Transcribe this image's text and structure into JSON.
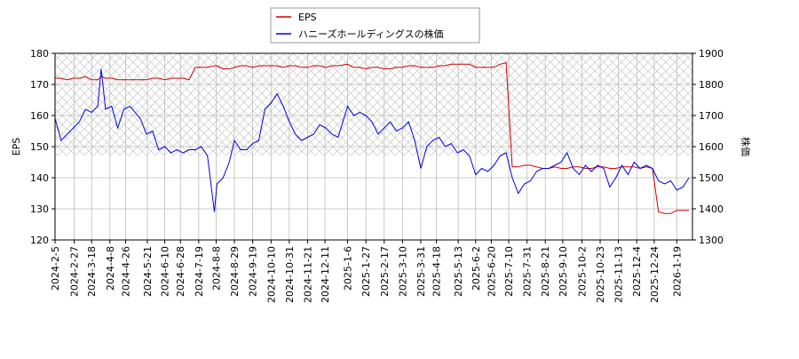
{
  "chart_data": {
    "type": "line",
    "x": [
      "2024-2-5",
      "2024-2-12",
      "2024-2-19",
      "2024-2-26",
      "2024-3-4",
      "2024-3-11",
      "2024-3-18",
      "2024-3-25",
      "2024-3-29",
      "2024-4-3",
      "2024-4-10",
      "2024-4-17",
      "2024-4-24",
      "2024-5-1",
      "2024-5-13",
      "2024-5-20",
      "2024-5-27",
      "2024-6-3",
      "2024-6-10",
      "2024-6-17",
      "2024-6-24",
      "2024-7-1",
      "2024-7-8",
      "2024-7-15",
      "2024-7-22",
      "2024-7-29",
      "2024-8-6",
      "2024-8-9",
      "2024-8-16",
      "2024-8-23",
      "2024-8-29",
      "2024-9-5",
      "2024-9-12",
      "2024-9-19",
      "2024-9-26",
      "2024-10-3",
      "2024-10-10",
      "2024-10-17",
      "2024-10-24",
      "2024-10-31",
      "2024-11-7",
      "2024-11-14",
      "2024-11-21",
      "2024-11-28",
      "2024-12-5",
      "2024-12-12",
      "2024-12-19",
      "2024-12-26",
      "2025-1-6",
      "2025-1-13",
      "2025-1-20",
      "2025-1-27",
      "2025-2-3",
      "2025-2-10",
      "2025-2-17",
      "2025-2-24",
      "2025-3-3",
      "2025-3-10",
      "2025-3-17",
      "2025-3-24",
      "2025-3-31",
      "2025-4-7",
      "2025-4-14",
      "2025-4-21",
      "2025-4-28",
      "2025-5-5",
      "2025-5-12",
      "2025-5-19",
      "2025-5-26",
      "2025-6-2",
      "2025-6-9",
      "2025-6-16",
      "2025-6-23",
      "2025-6-30",
      "2025-7-7",
      "2025-7-14",
      "2025-7-21",
      "2025-7-28",
      "2025-8-4",
      "2025-8-11",
      "2025-8-18",
      "2025-8-25",
      "2025-9-1",
      "2025-9-8",
      "2025-9-15",
      "2025-9-22",
      "2025-9-29",
      "2025-10-6",
      "2025-10-13",
      "2025-10-20",
      "2025-10-27",
      "2025-11-3",
      "2025-11-10",
      "2025-11-17",
      "2025-11-24",
      "2025-12-1",
      "2025-12-8",
      "2025-12-15",
      "2025-12-22",
      "2025-12-29",
      "2026-1-5",
      "2026-1-12",
      "2026-1-19",
      "2026-1-26",
      "2026-2-2"
    ],
    "series": [
      {
        "name": "EPS",
        "color": "#cc0000",
        "values": [
          172,
          172,
          171.5,
          172,
          172,
          172.5,
          171.5,
          171.5,
          172.5,
          172,
          172,
          171.5,
          171.5,
          171.5,
          171.5,
          171.5,
          172,
          172,
          171.5,
          172,
          172,
          172,
          171.5,
          175.5,
          175.5,
          175.5,
          176,
          176,
          175,
          175,
          175.5,
          176,
          176,
          175.5,
          176,
          176,
          176,
          176,
          175.5,
          176,
          176,
          175.5,
          175.5,
          176,
          176,
          175.5,
          176,
          176,
          176.5,
          175.5,
          175.5,
          175,
          175.5,
          175.5,
          175,
          175,
          175.5,
          175.5,
          176,
          176,
          175.5,
          175.5,
          175.5,
          176,
          176,
          176.5,
          176.5,
          176.5,
          176.5,
          175.5,
          175.5,
          175.5,
          175.5,
          176.5,
          177,
          143.5,
          143.5,
          144,
          144,
          143.5,
          143,
          143,
          143.5,
          143,
          143,
          143.5,
          143.5,
          143,
          143,
          143.5,
          143.5,
          143,
          143,
          143.5,
          143.5,
          143.5,
          143,
          143.5,
          143,
          129,
          128.5,
          128.5,
          129.5,
          129.5,
          129.5
        ]
      },
      {
        "name": "ハニーズホールディングスの株価",
        "color": "#0000dd",
        "axis": "y2",
        "values": [
          1690,
          1620,
          1640,
          1660,
          1680,
          1720,
          1710,
          1730,
          1850,
          1720,
          1730,
          1660,
          1720,
          1730,
          1690,
          1640,
          1650,
          1590,
          1600,
          1580,
          1590,
          1580,
          1590,
          1590,
          1600,
          1570,
          1390,
          1480,
          1500,
          1550,
          1620,
          1590,
          1590,
          1610,
          1620,
          1720,
          1740,
          1770,
          1730,
          1680,
          1640,
          1620,
          1630,
          1640,
          1670,
          1660,
          1640,
          1630,
          1730,
          1700,
          1710,
          1700,
          1680,
          1640,
          1660,
          1680,
          1650,
          1660,
          1680,
          1620,
          1530,
          1600,
          1620,
          1630,
          1600,
          1610,
          1580,
          1590,
          1570,
          1510,
          1530,
          1520,
          1540,
          1570,
          1580,
          1500,
          1450,
          1480,
          1490,
          1520,
          1530,
          1530,
          1540,
          1550,
          1580,
          1530,
          1510,
          1540,
          1520,
          1540,
          1530,
          1470,
          1500,
          1540,
          1510,
          1550,
          1530,
          1540,
          1530,
          1490,
          1480,
          1490,
          1460,
          1470,
          1500
        ]
      }
    ],
    "y_label": "EPS",
    "y2_label": "株価",
    "xlim": [
      "2024-2-5",
      "2026-2-6"
    ],
    "xticks": [
      "2024-2-5",
      "2024-2-27",
      "2024-3-18",
      "2024-4-8",
      "2024-4-26",
      "2024-5-21",
      "2024-6-10",
      "2024-6-28",
      "2024-7-19",
      "2024-8-8",
      "2024-8-29",
      "2024-9-19",
      "2024-10-10",
      "2024-10-31",
      "2024-11-21",
      "2024-12-11",
      "2025-1-6",
      "2025-1-27",
      "2025-2-17",
      "2025-3-10",
      "2025-3-31",
      "2025-4-18",
      "2025-5-13",
      "2025-6-2",
      "2025-6-20",
      "2025-7-10",
      "2025-7-31",
      "2025-8-21",
      "2025-9-10",
      "2025-10-2",
      "2025-10-23",
      "2025-11-13",
      "2025-12-4",
      "2025-12-24",
      "2026-1-19"
    ],
    "ylim": [
      120,
      180
    ],
    "yticks": [
      120,
      130,
      140,
      150,
      160,
      170,
      180
    ],
    "y2lim": [
      1300,
      1900
    ],
    "y2ticks": [
      1300,
      1400,
      1500,
      1600,
      1700,
      1800,
      1900
    ],
    "grid": true,
    "legend": "top"
  }
}
